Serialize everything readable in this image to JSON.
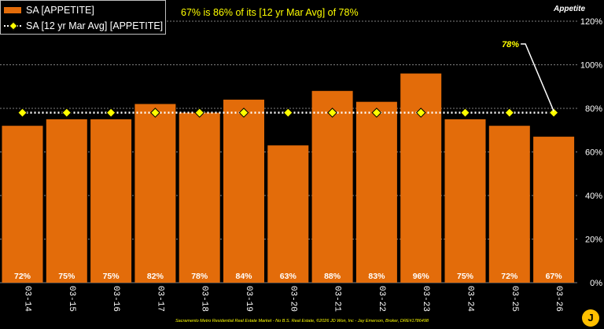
{
  "chart_data": {
    "type": "bar",
    "subtitle": "67% is 86% of its [12 yr Mar Avg] of 78%",
    "y_axis_title": "Appetite",
    "categories": [
      "03-14",
      "03-15",
      "03-16",
      "03-17",
      "03-18",
      "03-19",
      "03-20",
      "03-21",
      "03-22",
      "03-23",
      "03-24",
      "03-25",
      "03-26"
    ],
    "series": [
      {
        "name": "SA [APPETITE]",
        "type": "bar",
        "color": "#E36C0A",
        "values": [
          72,
          75,
          75,
          82,
          78,
          84,
          63,
          88,
          83,
          96,
          75,
          72,
          67
        ],
        "data_labels": [
          "72%",
          "75%",
          "75%",
          "82%",
          "78%",
          "84%",
          "63%",
          "88%",
          "83%",
          "96%",
          "75%",
          "72%",
          "67%"
        ]
      },
      {
        "name": "SA [12 yr Mar Avg] [APPETITE]",
        "type": "line",
        "color": "#FFFFFF",
        "marker_color": "#FFFF00",
        "values": [
          78,
          78,
          78,
          78,
          78,
          78,
          78,
          78,
          78,
          78,
          78,
          78,
          78
        ]
      }
    ],
    "annotation": "78%",
    "ylim": [
      0,
      120
    ],
    "yticks": [
      0,
      20,
      40,
      60,
      80,
      100,
      120
    ],
    "ytick_labels": [
      "0%",
      "20%",
      "40%",
      "60%",
      "80%",
      "100%",
      "120%"
    ],
    "grid": true,
    "y_axis_position": "right",
    "legend_position": "top-left"
  },
  "footer": "Sacramento Metro Residential Real Estate Market - No B.S. Real Estate, ©2026 JD Won, Inc - Jay Emerson, Broker, DRE#1786498",
  "logo_text": "J"
}
